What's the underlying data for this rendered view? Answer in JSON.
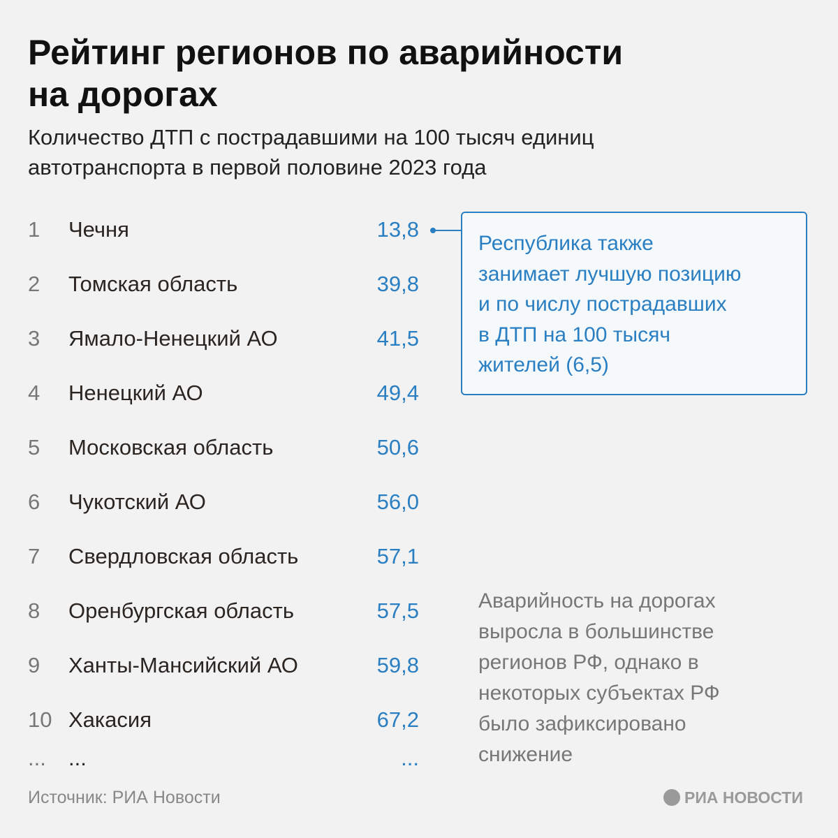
{
  "header": {
    "title_lines": [
      "Рейтинг регионов по аварийности",
      "на дорогах"
    ],
    "subtitle_lines": [
      "Количество ДТП с пострадавшими на 100 тысяч единиц",
      "автотранспорта в первой половине 2023 года"
    ]
  },
  "table": {
    "rows": [
      [
        1,
        "Чечня",
        "13,8"
      ],
      [
        2,
        "Томская область",
        "39,8"
      ],
      [
        3,
        "Ямало-Ненецкий АО",
        "41,5"
      ],
      [
        4,
        "Ненецкий АО",
        "49,4"
      ],
      [
        5,
        "Московская область",
        "50,6"
      ],
      [
        6,
        "Чукотский АО",
        "56,0"
      ],
      [
        7,
        "Свердловская область",
        "57,1"
      ],
      [
        8,
        "Оренбургская область",
        "57,5"
      ],
      [
        9,
        "Ханты-Мансийский АО",
        "59,8"
      ],
      [
        10,
        "Хакасия",
        "67,2"
      ],
      [
        "...",
        "...",
        "..."
      ]
    ]
  },
  "callout": {
    "lines": [
      "Республика также",
      "занимает лучшую позицию",
      "и по числу пострадавших",
      "в ДТП на 100 тысяч",
      "жителей (6,5)"
    ]
  },
  "note": {
    "lines": [
      "Аварийность на дорогах",
      "выросла в большинстве",
      "регионов РФ, однако в",
      "некоторых субъектах РФ",
      "было зафиксировано",
      "снижение"
    ]
  },
  "footer": {
    "source": "Источник: РИА Новости",
    "logo": "РИА НОВОСТИ"
  }
}
